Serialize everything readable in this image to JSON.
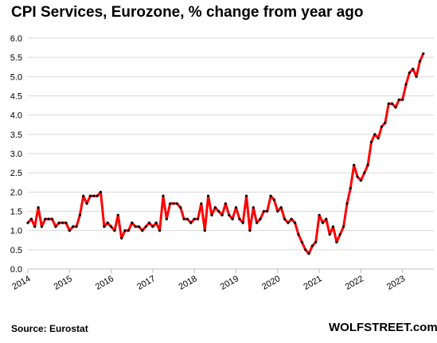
{
  "chart_data": {
    "type": "line",
    "title": "CPI Services, Eurozone, % change from year ago",
    "source": "Source: Eurostat",
    "brand": "WOLFSTREET.com",
    "xlabel": "",
    "ylabel": "",
    "ylim": [
      0,
      6
    ],
    "yticks": [
      "0.0",
      "0.5",
      "1.0",
      "1.5",
      "2.0",
      "2.5",
      "3.0",
      "3.5",
      "4.0",
      "4.5",
      "5.0",
      "5.5",
      "6.0"
    ],
    "xticks": [
      "2014",
      "2015",
      "2016",
      "2017",
      "2018",
      "2019",
      "2020",
      "2021",
      "2022",
      "2023"
    ],
    "xlim": [
      2014.0,
      2023.75
    ],
    "grid": true,
    "line_color": "#ff0000",
    "marker_color": "#000000",
    "series": [
      {
        "start_year": 2014,
        "start_month": 1,
        "values": [
          1.2,
          1.3,
          1.1,
          1.6,
          1.1,
          1.3,
          1.3,
          1.3,
          1.1,
          1.2,
          1.2,
          1.2,
          1.0,
          1.1,
          1.1,
          1.4,
          1.9,
          1.7,
          1.9,
          1.9,
          1.9,
          2.0,
          1.1,
          1.2,
          1.1,
          1.0,
          1.4,
          0.8,
          1.0,
          1.0,
          1.2,
          1.1,
          1.1,
          1.0,
          1.1,
          1.2,
          1.1,
          1.2,
          1.0,
          1.9,
          1.3,
          1.7,
          1.7,
          1.7,
          1.6,
          1.3,
          1.3,
          1.2,
          1.3,
          1.3,
          1.7,
          1.0,
          1.9,
          1.4,
          1.6,
          1.5,
          1.4,
          1.7,
          1.4,
          1.3,
          1.6,
          1.3,
          1.2,
          1.9,
          1.0,
          1.6,
          1.2,
          1.3,
          1.5,
          1.5,
          1.9,
          1.8,
          1.5,
          1.6,
          1.3,
          1.2,
          1.3,
          1.2,
          0.9,
          0.7,
          0.5,
          0.4,
          0.6,
          0.7,
          1.4,
          1.2,
          1.3,
          0.9,
          1.1,
          0.7,
          0.9,
          1.1,
          1.7,
          2.1,
          2.7,
          2.4,
          2.3,
          2.5,
          2.7,
          3.3,
          3.5,
          3.4,
          3.7,
          3.8,
          4.3,
          4.3,
          4.2,
          4.4,
          4.4,
          4.8,
          5.1,
          5.2,
          5.0,
          5.4,
          5.6
        ]
      }
    ]
  }
}
